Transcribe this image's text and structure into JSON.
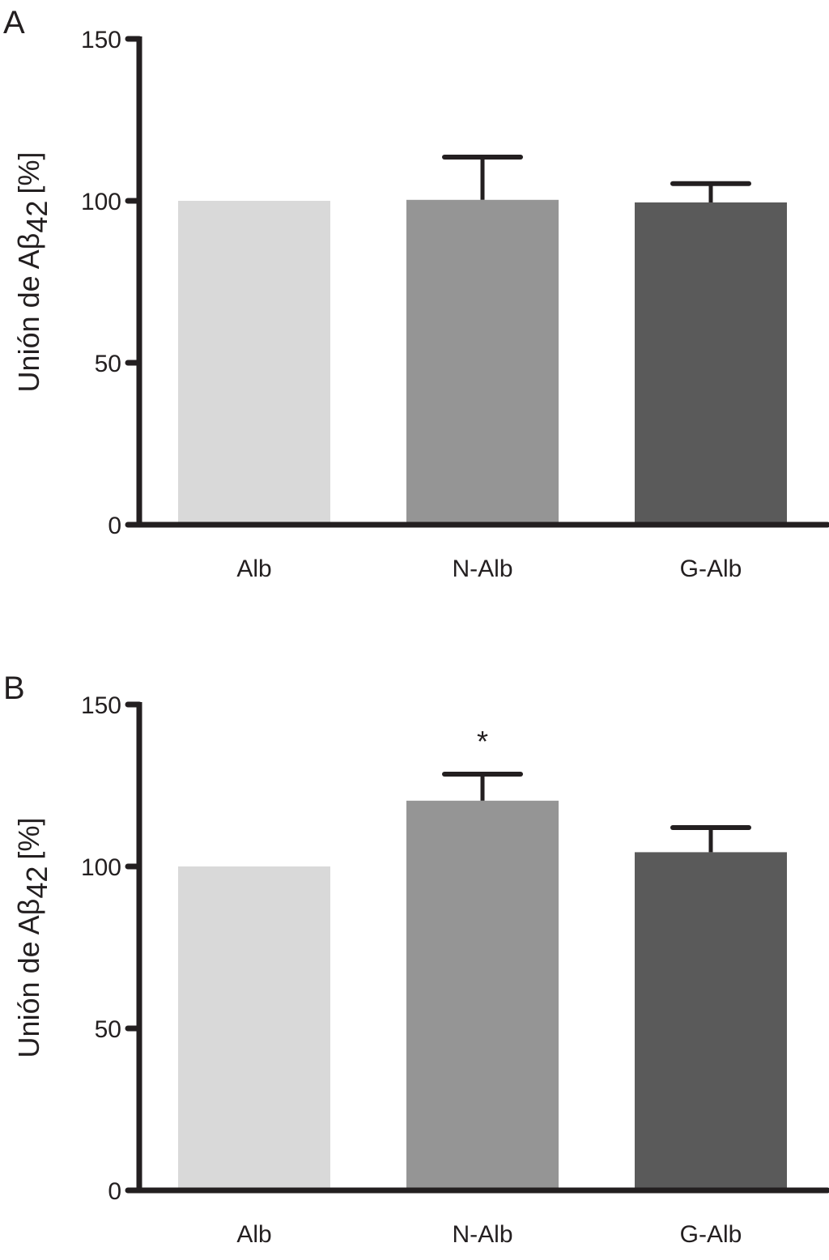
{
  "chart_data": [
    {
      "panel_label": "A",
      "type": "bar",
      "categories": [
        "Alb",
        "N-Alb",
        "G-Alb"
      ],
      "values": [
        100,
        100.3,
        99.5
      ],
      "error_upper": [
        null,
        113.5,
        105.3
      ],
      "ylabel_main": "Unión de Aβ",
      "ylabel_sub": "42",
      "ylabel_unit": "[%]",
      "ylim": [
        0,
        150
      ],
      "yticks": [
        0,
        50,
        100,
        150
      ],
      "annotations": [],
      "colors": [
        "#d9d9d9",
        "#959595",
        "#5a5a5a"
      ],
      "grid": false
    },
    {
      "panel_label": "B",
      "type": "bar",
      "categories": [
        "Alb",
        "N-Alb",
        "G-Alb"
      ],
      "values": [
        100,
        120.3,
        104.4
      ],
      "error_upper": [
        null,
        128.5,
        112
      ],
      "ylabel_main": "Unión de Aβ",
      "ylabel_sub": "42",
      "ylabel_unit": "[%]",
      "ylim": [
        0,
        150
      ],
      "yticks": [
        0,
        50,
        100,
        150
      ],
      "annotations": [
        {
          "category": "N-Alb",
          "text": "*"
        }
      ],
      "colors": [
        "#d9d9d9",
        "#959595",
        "#5a5a5a"
      ],
      "grid": false
    }
  ]
}
